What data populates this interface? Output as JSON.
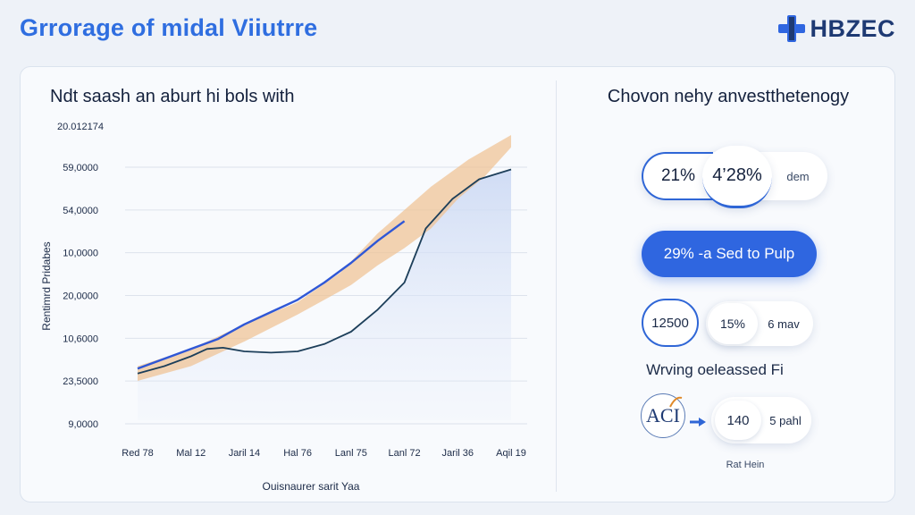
{
  "header": {
    "title": "Grrorage of midal Viiutrre",
    "brand": "HBZEC"
  },
  "chart_data": {
    "type": "line",
    "title": "Ndt saash an aburt hi bols with",
    "top_label": "20.012174",
    "xlabel": "Ouisnaurer sarit Yaa",
    "ylabel": "Rentimrd Pridabes",
    "categories": [
      "Red 78",
      "Mal 12",
      "Jaril 14",
      "Hal 76",
      "Lanl 75",
      "Lanl 72",
      "Jaril 36",
      "Aqil 19"
    ],
    "y_tick_labels": [
      "59,0000",
      "54,0000",
      "10,0000",
      "20,0000",
      "10,6000",
      "23,5000",
      "9,0000"
    ],
    "series": [
      {
        "name": "",
        "color": "#2f57d6",
        "values": [
          [
            0,
            2.1
          ],
          [
            0.5,
            2.5
          ],
          [
            1,
            2.9
          ],
          [
            1.5,
            3.3
          ],
          [
            2,
            3.9
          ],
          [
            2.5,
            4.4
          ],
          [
            3,
            4.9
          ],
          [
            3.5,
            5.6
          ],
          [
            4,
            6.4
          ],
          [
            4.5,
            7.3
          ],
          [
            5,
            8.1
          ]
        ]
      },
      {
        "name": "",
        "color": "#1d3f5a",
        "values": [
          [
            0,
            1.9
          ],
          [
            0.5,
            2.2
          ],
          [
            1,
            2.6
          ],
          [
            1.3,
            2.9
          ],
          [
            1.6,
            2.95
          ],
          [
            2,
            2.8
          ],
          [
            2.5,
            2.75
          ],
          [
            3,
            2.8
          ],
          [
            3.5,
            3.1
          ],
          [
            4,
            3.6
          ],
          [
            4.5,
            4.5
          ],
          [
            5,
            5.6
          ],
          [
            5.4,
            7.8
          ],
          [
            5.9,
            9.0
          ],
          [
            6.4,
            9.8
          ],
          [
            7,
            10.2
          ]
        ]
      },
      {
        "name": "",
        "color": "#f0c090",
        "lower": [
          [
            0,
            1.6
          ],
          [
            1,
            2.2
          ],
          [
            2,
            3.2
          ],
          [
            3,
            4.3
          ],
          [
            4,
            5.5
          ],
          [
            4.5,
            6.3
          ],
          [
            5,
            7.0
          ],
          [
            5.5,
            7.8
          ],
          [
            6,
            9.0
          ],
          [
            6.5,
            9.9
          ],
          [
            7,
            11.1
          ]
        ],
        "upper": [
          [
            0,
            2.2
          ],
          [
            1,
            2.9
          ],
          [
            2,
            3.9
          ],
          [
            3,
            4.8
          ],
          [
            3.8,
            6.0
          ],
          [
            4.5,
            7.6
          ],
          [
            5.5,
            9.5
          ],
          [
            6.2,
            10.6
          ],
          [
            7,
            11.6
          ]
        ]
      }
    ],
    "xlim": [
      0,
      7
    ],
    "ylim": [
      0,
      12
    ],
    "grid": true
  },
  "side": {
    "title": "Chovon nehy anvestthetenogy",
    "pill1": {
      "left": "21%",
      "mid": "4’28%",
      "right": "dem"
    },
    "cta": "29% -a Sed to Pulp",
    "row2": {
      "circle": "12500",
      "chip": "15%",
      "right": "6 mav"
    },
    "subhead": "Wrving oeleassed Fi",
    "row3": {
      "logo": "ACI",
      "chip": "140",
      "right": "5 pahl"
    },
    "foot": "Rat Hein"
  },
  "colors": {
    "accent": "#2f66e0",
    "brand": "#1e3a73"
  }
}
